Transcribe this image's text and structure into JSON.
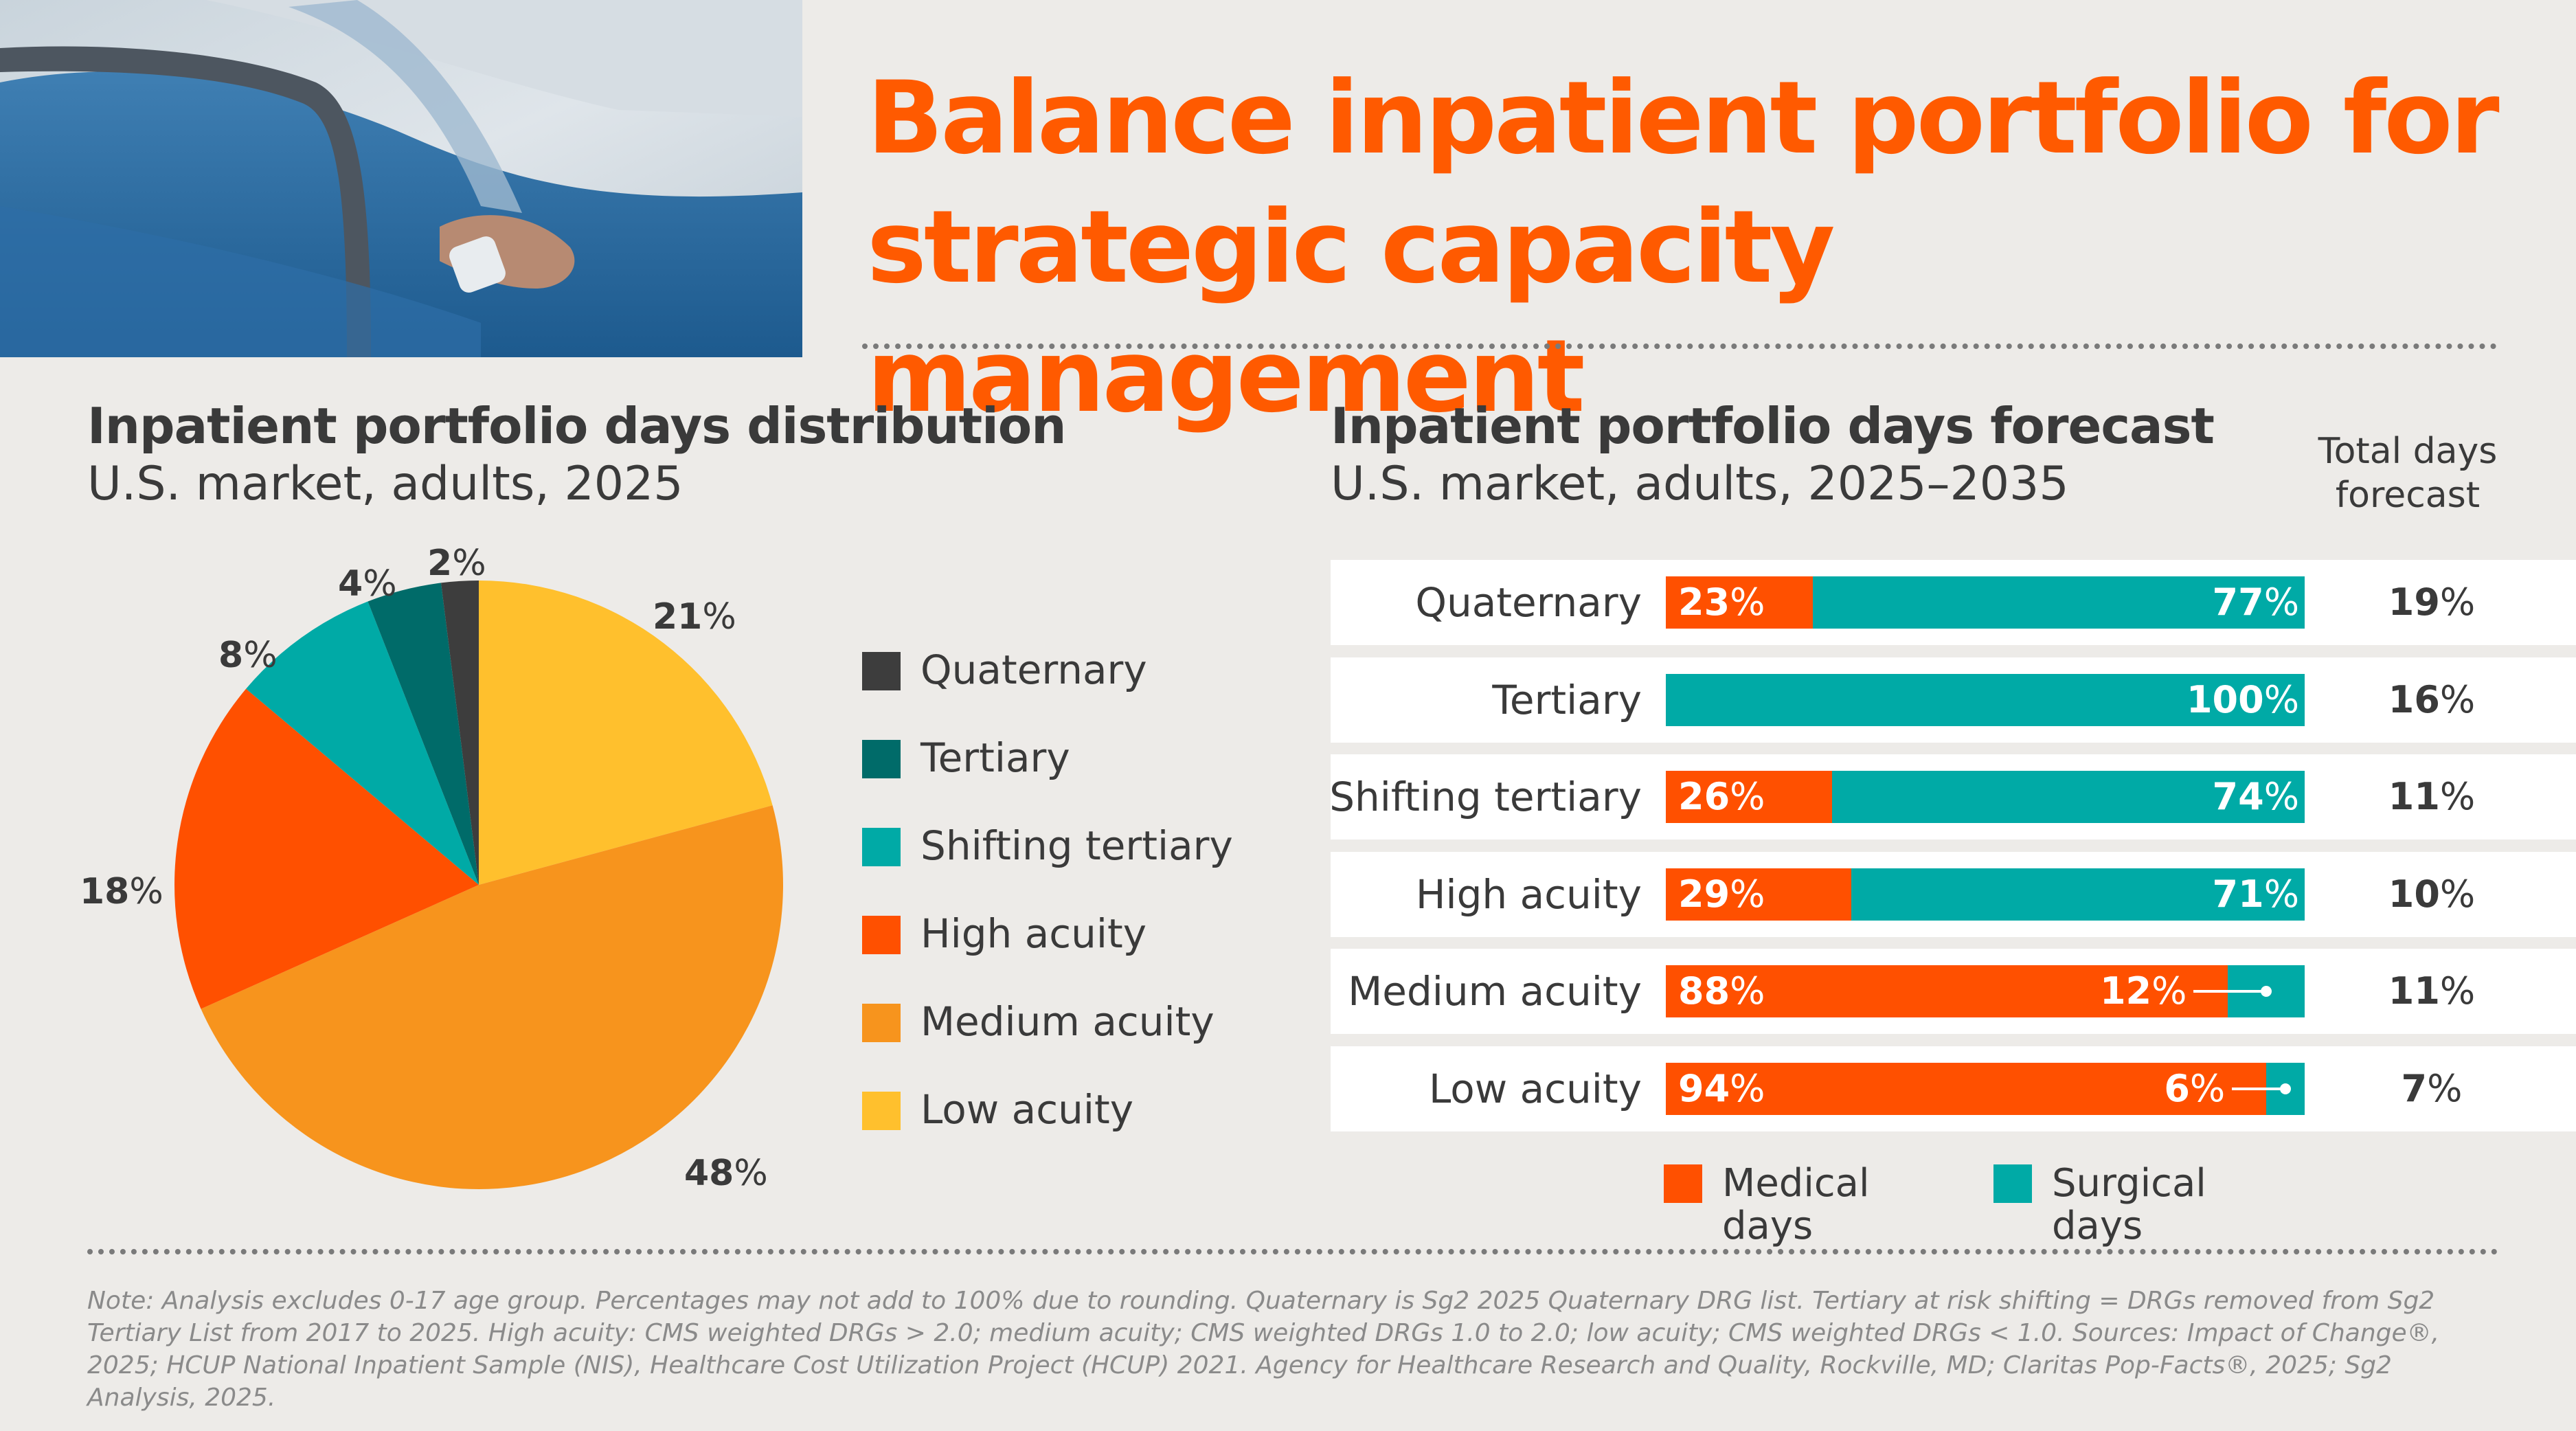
{
  "headline": "Balance inpatient portfolio for strategic capacity management",
  "colors": {
    "accent": "#ff5a00",
    "quaternary": "#3d3d3d",
    "tertiary": "#006b69",
    "shifting_tertiary": "#00aaa6",
    "high_acuity": "#ff5000",
    "medium_acuity": "#f7941d",
    "low_acuity": "#ffc02d",
    "medical_days": "#ff5000",
    "surgical_days": "#00aaa6"
  },
  "photo": {
    "icon": "hospital-patient-photo"
  },
  "distribution": {
    "title": "Inpatient portfolio days distribution",
    "subtitle": "U.S. market, adults, 2025"
  },
  "forecast": {
    "title": "Inpatient portfolio days forecast",
    "subtitle": "U.S. market, adults, 2025–2035",
    "total_header_line1": "Total days",
    "total_header_line2": "forecast"
  },
  "chart_data": [
    {
      "type": "pie",
      "categories": [
        "Quaternary",
        "Tertiary",
        "Shifting tertiary",
        "High acuity",
        "Medium acuity",
        "Low acuity"
      ],
      "values": [
        2,
        4,
        8,
        18,
        48,
        21
      ],
      "labels": [
        "2",
        "4",
        "8",
        "18",
        "48",
        "21"
      ],
      "unit": "%",
      "legend": "right"
    },
    {
      "type": "bar",
      "orientation": "horizontal",
      "stacked": true,
      "categories": [
        "Quaternary",
        "Tertiary",
        "Shifting tertiary",
        "High acuity",
        "Medium acuity",
        "Low acuity"
      ],
      "series": [
        {
          "name": "Medical days",
          "values": [
            23,
            0,
            26,
            29,
            88,
            94
          ]
        },
        {
          "name": "Surgical days",
          "values": [
            77,
            100,
            74,
            71,
            12,
            6
          ]
        }
      ],
      "total_days_forecast": [
        19,
        16,
        11,
        10,
        11,
        7
      ],
      "unit": "%",
      "legend": "bottom"
    }
  ],
  "bar_legend": {
    "medical": "Medical days",
    "surgical": "Surgical days"
  },
  "note": "Note: Analysis excludes 0-17 age group. Percentages may not add to 100% due to rounding. Quaternary is Sg2 2025 Quaternary DRG list. Tertiary at risk shifting = DRGs removed from Sg2 Tertiary List from 2017 to 2025. High acuity: CMS weighted DRGs > 2.0; medium acuity; CMS weighted DRGs 1.0 to 2.0; low acuity; CMS weighted DRGs < 1.0. Sources: Impact of Change®, 2025; HCUP National Inpatient Sample (NIS), Healthcare Cost Utilization Project (HCUP) 2021. Agency for Healthcare Research and Quality, Rockville, MD; Claritas Pop-Facts®, 2025; Sg2 Analysis, 2025."
}
